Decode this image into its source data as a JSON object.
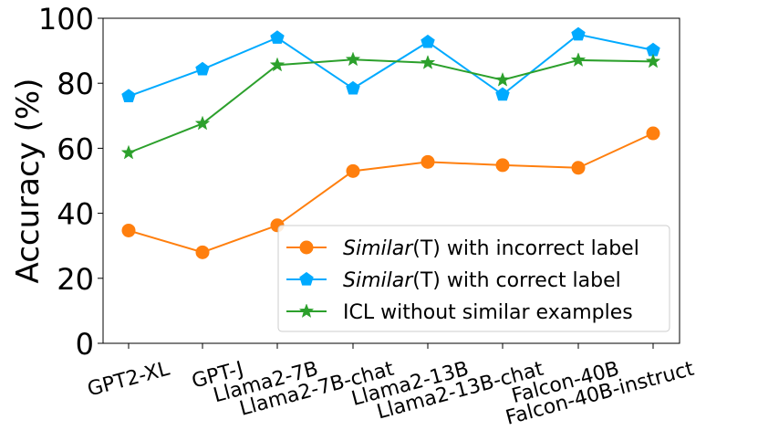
{
  "chart_data": {
    "type": "line",
    "title": "",
    "xlabel": "",
    "ylabel": "Accuracy (%)",
    "ylim": [
      0,
      100
    ],
    "yticks": [
      0,
      20,
      40,
      60,
      80,
      100
    ],
    "categories": [
      "GPT2-XL",
      "GPT-J",
      "Llama2-7B",
      "Llama2-7B-chat",
      "Llama2-13B",
      "Llama2-13B-chat",
      "Falcon-40B",
      "Falcon-40B-instruct"
    ],
    "legend_position": "lower-right",
    "series": [
      {
        "name_italic": "Similar",
        "name_rest": "(T) with incorrect label",
        "color": "#ff7f0e",
        "marker": "circle",
        "values": [
          34.7,
          28.0,
          36.3,
          53.0,
          55.8,
          54.8,
          54.0,
          64.6
        ]
      },
      {
        "name_italic": "Similar",
        "name_rest": "(T) with correct label",
        "color": "#00aaff",
        "marker": "pentagon",
        "values": [
          76.0,
          84.3,
          94.0,
          78.4,
          92.7,
          76.5,
          95.0,
          90.2
        ]
      },
      {
        "name_italic": "",
        "name_rest": "ICL without similar examples",
        "color": "#2ca02c",
        "marker": "star",
        "values": [
          58.6,
          67.6,
          85.6,
          87.3,
          86.3,
          81.0,
          87.1,
          86.7
        ]
      }
    ]
  }
}
